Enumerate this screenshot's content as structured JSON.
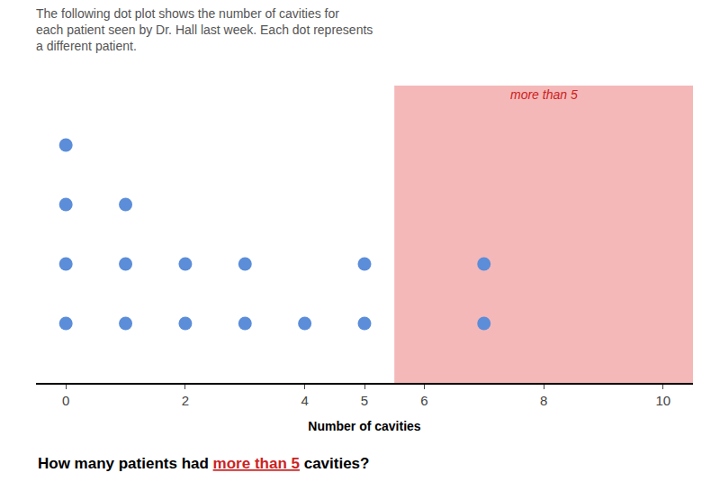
{
  "chart_data": {
    "type": "dot",
    "title": "The following dot plot shows the number of cavities for\neach patient seen by Dr. Hall last week. Each dot represents\na different patient.",
    "x": [
      0,
      1,
      2,
      3,
      4,
      5,
      7
    ],
    "values": [
      4,
      3,
      2,
      2,
      1,
      2,
      2
    ],
    "color": "#5b8dd9",
    "xlim": [
      -0.5,
      10.5
    ],
    "xticks": [
      0,
      2,
      4,
      5,
      6,
      8,
      10
    ],
    "ylim": [
      0,
      5
    ],
    "xlabel": "Number of cavities",
    "tick_labels": "x",
    "grid": false,
    "highlight": {
      "start": 5.5,
      "end": 10.5,
      "color": "#f5b8b8",
      "label": "more than 5",
      "label_color": "#cc2222"
    },
    "question": [
      {
        "text": "How many patients had "
      },
      {
        "text": "more than 5",
        "color": "#cc2222"
      },
      {
        "text": " cavities?"
      }
    ]
  }
}
